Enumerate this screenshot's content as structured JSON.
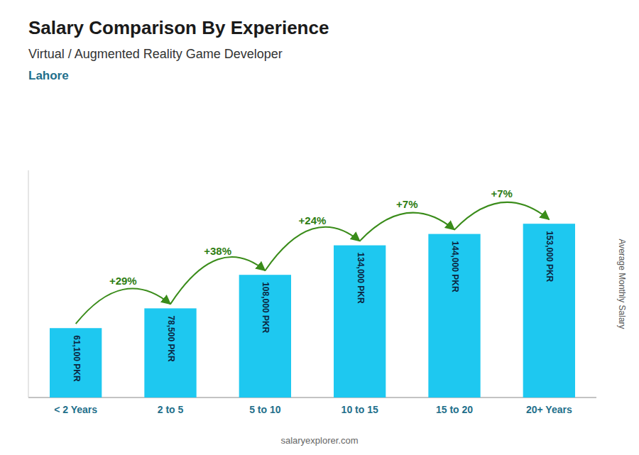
{
  "chart_data": {
    "type": "bar",
    "title": "Salary Comparison By Experience",
    "subtitle": [
      "Virtual / Augmented Reality Game Developer",
      "Lahore"
    ],
    "ylabel": "Average Monthly Salary",
    "categories": [
      "< 2 Years",
      "2 to 5",
      "5 to 10",
      "10 to 15",
      "15 to 20",
      "20+ Years"
    ],
    "values": [
      61100,
      78500,
      108000,
      134000,
      144000,
      153000
    ],
    "value_labels": [
      "61,100 PKR",
      "78,500 PKR",
      "108,000 PKR",
      "134,000 PKR",
      "144,000 PKR",
      "153,000 PKR"
    ],
    "data_labels": true,
    "annotations": [
      "+29%",
      "+38%",
      "+24%",
      "+7%",
      "+7%"
    ],
    "source": "salaryexplorer.com",
    "color": "#1EC8F0",
    "ylim": [
      0,
      200000
    ],
    "tick_labels": "x",
    "grid": false
  }
}
